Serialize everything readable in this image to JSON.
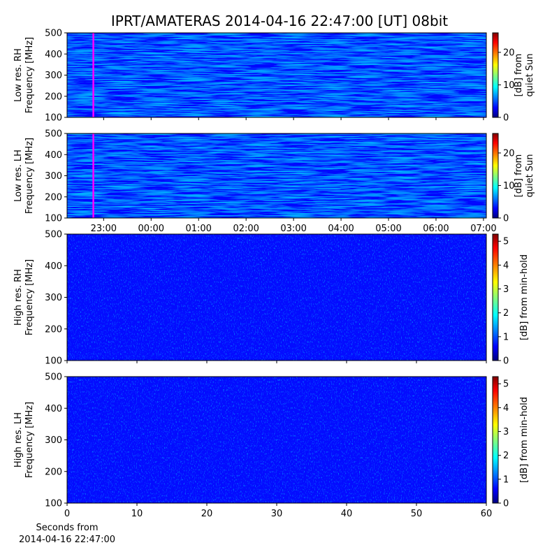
{
  "title": "IPRT/AMATERAS 2014-04-16 22:47:00 [UT]   08bit",
  "chart_data": [
    {
      "type": "heatmap",
      "ylabel": [
        "Low res. RH",
        "Frequency [MHz]"
      ],
      "ylim": [
        100,
        500
      ],
      "yticks": [
        100,
        200,
        300,
        400,
        500
      ],
      "xlim": [
        22.23,
        31.06
      ],
      "marker_x": 22.783,
      "marker_color": "#ff00ff",
      "colorbar_label": [
        "[dB] from",
        "quiet Sun"
      ],
      "clim": [
        0,
        26
      ],
      "cticks": [
        0,
        10,
        20
      ]
    },
    {
      "type": "heatmap",
      "ylabel": [
        "Low res. LH",
        "Frequency [MHz]"
      ],
      "ylim": [
        100,
        500
      ],
      "yticks": [
        100,
        200,
        300,
        400,
        500
      ],
      "xlim": [
        22.23,
        31.06
      ],
      "xticks": [
        {
          "value": 23,
          "label": "23:00"
        },
        {
          "value": 24,
          "label": "00:00"
        },
        {
          "value": 25,
          "label": "01:00"
        },
        {
          "value": 26,
          "label": "02:00"
        },
        {
          "value": 27,
          "label": "03:00"
        },
        {
          "value": 28,
          "label": "04:00"
        },
        {
          "value": 29,
          "label": "05:00"
        },
        {
          "value": 30,
          "label": "06:00"
        },
        {
          "value": 31,
          "label": "07:00"
        }
      ],
      "marker_x": 22.783,
      "marker_color": "#ff00ff",
      "colorbar_label": [
        "[dB] from",
        "quiet Sun"
      ],
      "clim": [
        0,
        26
      ],
      "cticks": [
        0,
        10,
        20
      ]
    },
    {
      "type": "heatmap",
      "ylabel": [
        "High res. RH",
        "Frequency [MHz]"
      ],
      "ylim": [
        100,
        500
      ],
      "yticks": [
        100,
        200,
        300,
        400,
        500
      ],
      "xlim": [
        0,
        60
      ],
      "colorbar_label": [
        "[dB] from min-hold"
      ],
      "clim": [
        0,
        5.3
      ],
      "cticks": [
        0,
        1,
        2,
        3,
        4,
        5
      ]
    },
    {
      "type": "heatmap",
      "ylabel": [
        "High res. LH",
        "Frequency [MHz]"
      ],
      "ylim": [
        100,
        500
      ],
      "yticks": [
        100,
        200,
        300,
        400,
        500
      ],
      "xlim": [
        0,
        60
      ],
      "xticks": [
        0,
        10,
        20,
        30,
        40,
        50,
        60
      ],
      "xlabel": [
        "Seconds from",
        "2014-04-16 22:47:00"
      ],
      "colorbar_label": [
        "[dB] from min-hold"
      ],
      "clim": [
        0,
        5.3
      ],
      "cticks": [
        0,
        1,
        2,
        3,
        4,
        5
      ]
    }
  ]
}
